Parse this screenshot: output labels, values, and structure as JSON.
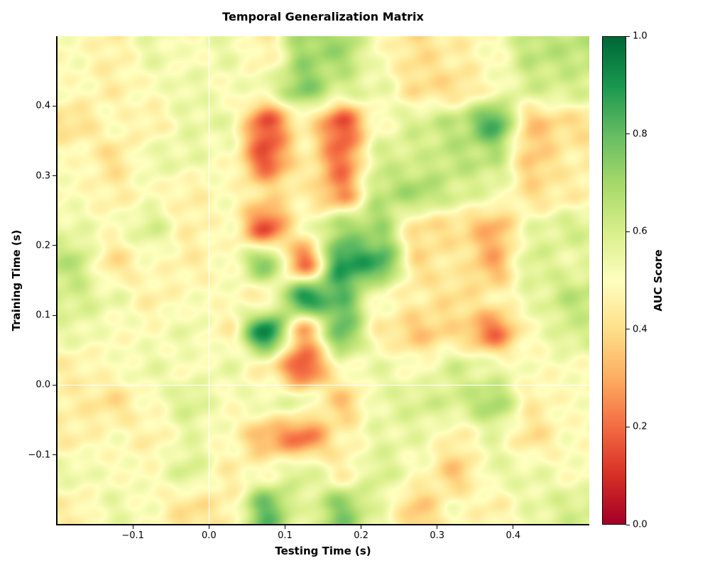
{
  "chart_data": {
    "type": "heatmap",
    "title": "Temporal Generalization Matrix",
    "xlabel": "Testing Time (s)",
    "ylabel": "Training Time (s)",
    "xlim": [
      -0.2,
      0.5
    ],
    "ylim": [
      -0.2,
      0.5
    ],
    "xticks": [
      -0.1,
      0.0,
      0.1,
      0.2,
      0.3,
      0.4
    ],
    "xtick_labels": [
      "−0.1",
      "0.0",
      "0.1",
      "0.2",
      "0.3",
      "0.4"
    ],
    "yticks": [
      -0.1,
      0.0,
      0.1,
      0.2,
      0.3,
      0.4
    ],
    "ytick_labels": [
      "−0.1",
      "0.0",
      "0.1",
      "0.2",
      "0.3",
      "0.4"
    ],
    "reference_lines": {
      "x": 0.0,
      "y": 0.0,
      "color": "#ffffff"
    },
    "colormap": "RdYlGn",
    "colormap_stops": [
      "#a50026",
      "#d73027",
      "#f46d43",
      "#fdae61",
      "#fee08b",
      "#ffffbf",
      "#d9ef8b",
      "#a6d96a",
      "#66bd63",
      "#1a9850",
      "#006837"
    ],
    "colorbar": {
      "label": "AUC Score",
      "range": [
        0.0,
        1.0
      ],
      "ticks": [
        0.0,
        0.2,
        0.4,
        0.6,
        0.8,
        1.0
      ],
      "tick_labels": [
        "0.0",
        "0.2",
        "0.4",
        "0.6",
        "0.8",
        "1.0"
      ]
    },
    "x_centers": [
      -0.175,
      -0.125,
      -0.075,
      -0.025,
      0.025,
      0.075,
      0.125,
      0.175,
      0.225,
      0.275,
      0.325,
      0.375,
      0.425,
      0.475
    ],
    "y_centers": [
      0.475,
      0.425,
      0.375,
      0.325,
      0.275,
      0.225,
      0.175,
      0.125,
      0.075,
      0.025,
      -0.025,
      -0.075,
      -0.125,
      -0.175
    ],
    "values": [
      [
        0.5,
        0.45,
        0.55,
        0.5,
        0.55,
        0.45,
        0.7,
        0.7,
        0.5,
        0.4,
        0.45,
        0.5,
        0.65,
        0.65
      ],
      [
        0.5,
        0.45,
        0.5,
        0.55,
        0.5,
        0.55,
        0.75,
        0.6,
        0.55,
        0.4,
        0.4,
        0.5,
        0.6,
        0.6
      ],
      [
        0.4,
        0.5,
        0.45,
        0.55,
        0.55,
        0.15,
        0.45,
        0.15,
        0.5,
        0.6,
        0.65,
        0.85,
        0.35,
        0.4
      ],
      [
        0.5,
        0.4,
        0.55,
        0.55,
        0.5,
        0.15,
        0.45,
        0.2,
        0.6,
        0.6,
        0.65,
        0.65,
        0.35,
        0.45
      ],
      [
        0.5,
        0.45,
        0.5,
        0.45,
        0.5,
        0.4,
        0.45,
        0.25,
        0.65,
        0.7,
        0.6,
        0.55,
        0.4,
        0.45
      ],
      [
        0.55,
        0.5,
        0.6,
        0.45,
        0.5,
        0.15,
        0.5,
        0.7,
        0.7,
        0.4,
        0.4,
        0.3,
        0.55,
        0.6
      ],
      [
        0.65,
        0.4,
        0.5,
        0.45,
        0.5,
        0.75,
        0.2,
        0.9,
        0.85,
        0.4,
        0.45,
        0.3,
        0.6,
        0.55
      ],
      [
        0.6,
        0.55,
        0.45,
        0.5,
        0.5,
        0.45,
        0.9,
        0.8,
        0.5,
        0.45,
        0.4,
        0.45,
        0.55,
        0.65
      ],
      [
        0.55,
        0.5,
        0.5,
        0.55,
        0.45,
        0.95,
        0.3,
        0.8,
        0.45,
        0.35,
        0.4,
        0.2,
        0.5,
        0.6
      ],
      [
        0.45,
        0.5,
        0.55,
        0.5,
        0.55,
        0.45,
        0.15,
        0.5,
        0.55,
        0.5,
        0.6,
        0.55,
        0.5,
        0.5
      ],
      [
        0.45,
        0.4,
        0.5,
        0.6,
        0.5,
        0.55,
        0.55,
        0.35,
        0.55,
        0.6,
        0.6,
        0.7,
        0.45,
        0.5
      ],
      [
        0.45,
        0.5,
        0.45,
        0.55,
        0.5,
        0.3,
        0.2,
        0.45,
        0.55,
        0.55,
        0.45,
        0.55,
        0.4,
        0.5
      ],
      [
        0.55,
        0.5,
        0.5,
        0.6,
        0.45,
        0.5,
        0.6,
        0.45,
        0.6,
        0.5,
        0.35,
        0.55,
        0.55,
        0.5
      ],
      [
        0.45,
        0.55,
        0.5,
        0.4,
        0.45,
        0.8,
        0.55,
        0.75,
        0.55,
        0.35,
        0.5,
        0.45,
        0.55,
        0.6
      ]
    ]
  }
}
